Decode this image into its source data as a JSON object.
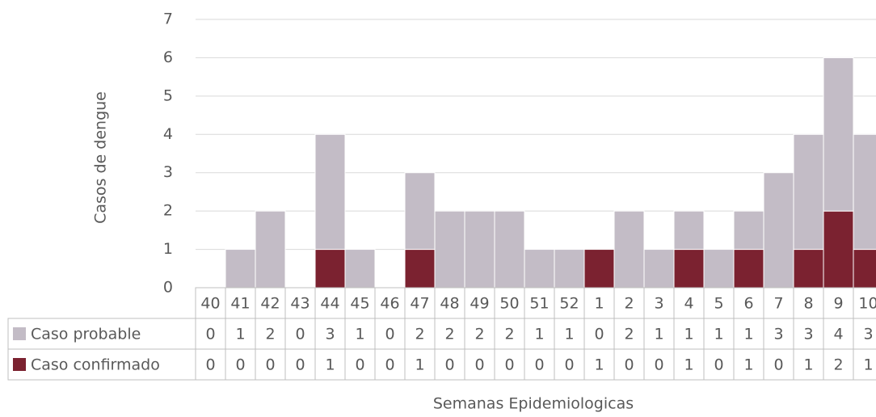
{
  "chart_data": {
    "type": "bar",
    "stacked": true,
    "x_label": "Semanas Epidemiologicas",
    "y_label": "Casos de dengue",
    "categories": [
      "40",
      "41",
      "42",
      "43",
      "44",
      "45",
      "46",
      "47",
      "48",
      "49",
      "50",
      "51",
      "52",
      "1",
      "2",
      "3",
      "4",
      "5",
      "6",
      "7",
      "8",
      "9",
      "10"
    ],
    "series": [
      {
        "name": "Caso probable",
        "color": "#c3bcc6",
        "values": [
          0,
          1,
          2,
          0,
          3,
          1,
          0,
          2,
          2,
          2,
          2,
          1,
          1,
          0,
          2,
          1,
          1,
          1,
          1,
          3,
          3,
          4,
          3
        ]
      },
      {
        "name": "Caso confirmado",
        "color": "#7b2230",
        "values": [
          0,
          0,
          0,
          0,
          1,
          0,
          0,
          1,
          0,
          0,
          0,
          0,
          0,
          1,
          0,
          0,
          1,
          0,
          1,
          0,
          1,
          2,
          1
        ]
      }
    ],
    "ylim": [
      0,
      7
    ],
    "yticks": [
      0,
      1,
      2,
      3,
      4,
      5,
      6,
      7
    ],
    "grid": true
  }
}
